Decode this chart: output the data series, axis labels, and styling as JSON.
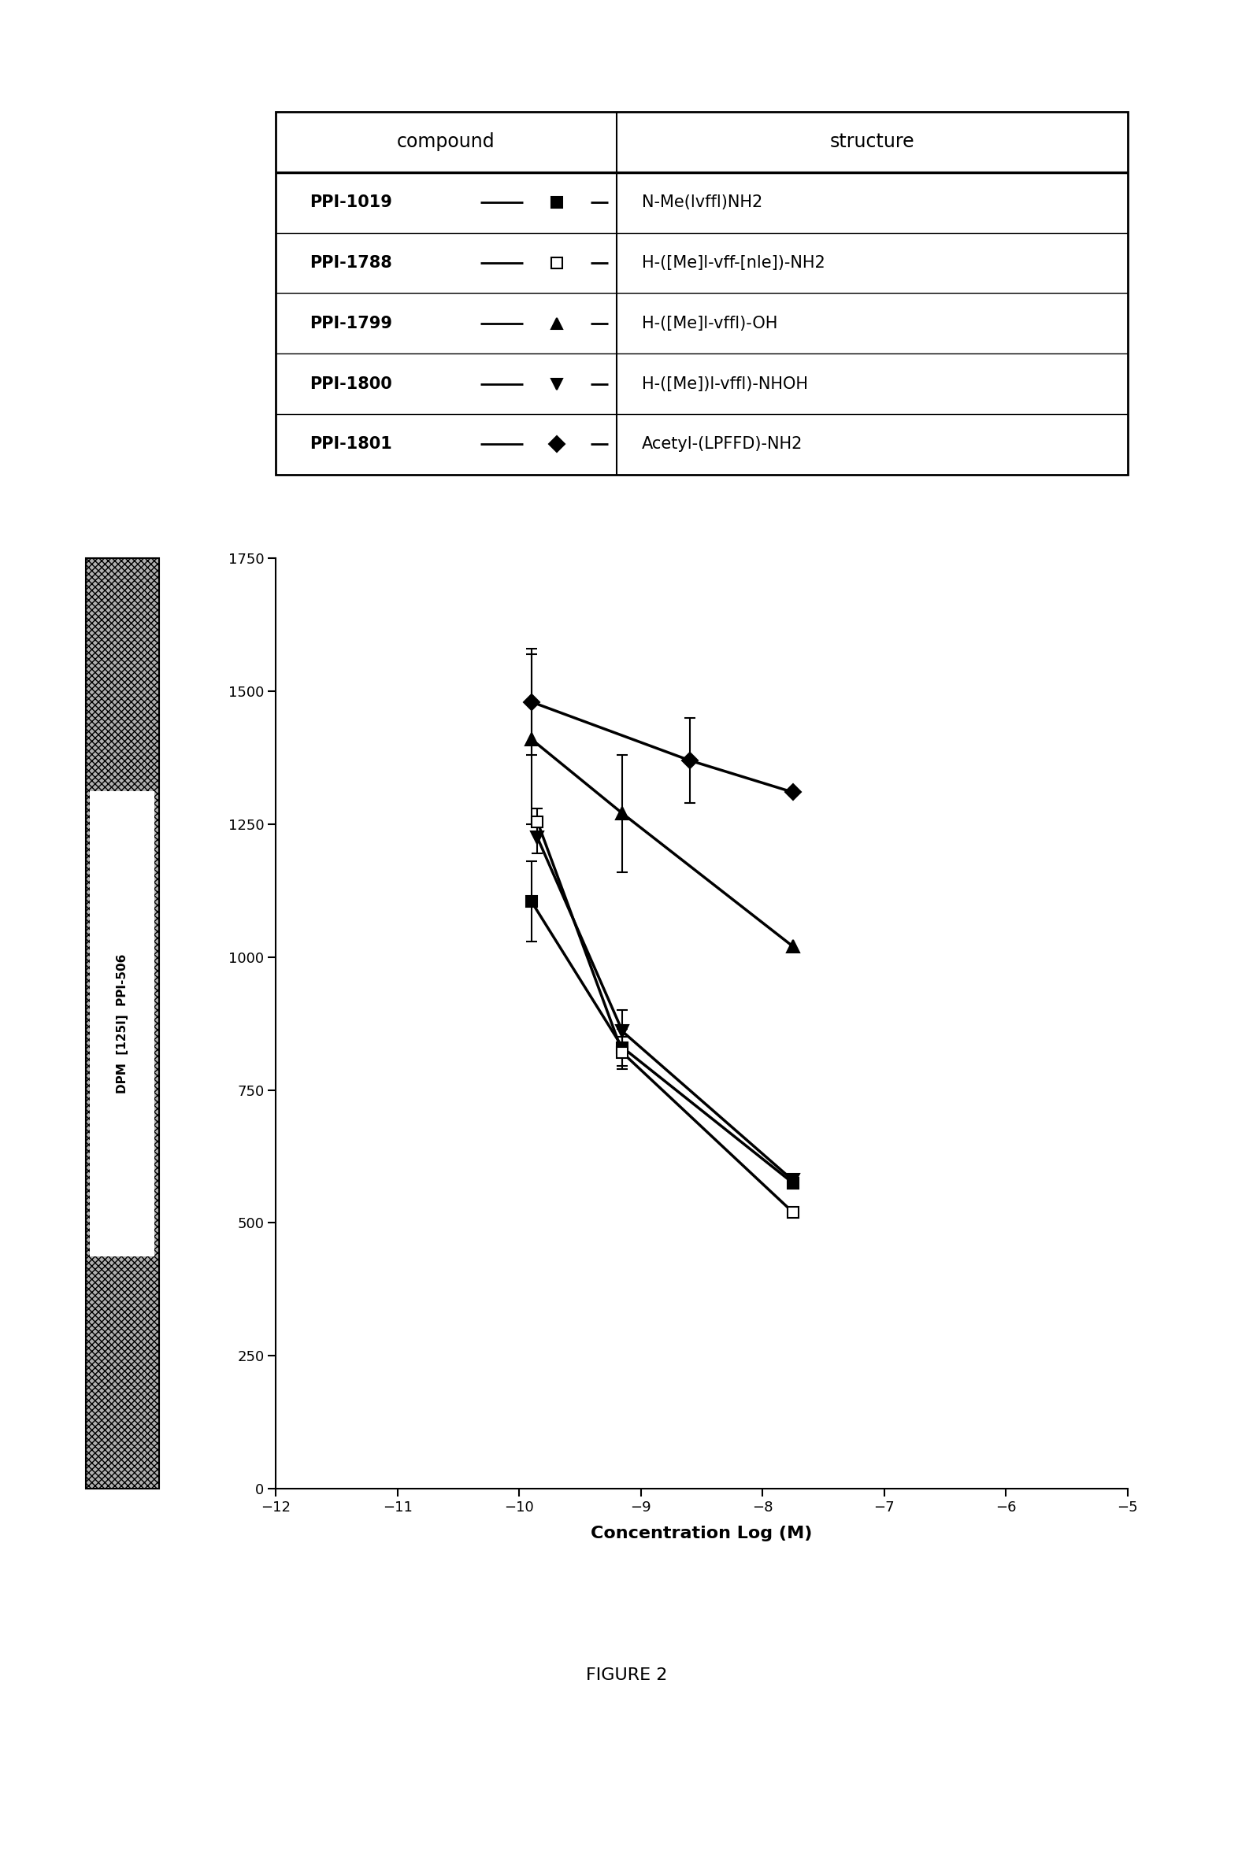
{
  "title": "FIGURE 2",
  "xlabel": "Concentration Log (M)",
  "xlim": [
    -12,
    -5
  ],
  "ylim": [
    0,
    1750
  ],
  "xticks": [
    -12,
    -11,
    -10,
    -9,
    -8,
    -7,
    -6,
    -5
  ],
  "yticks": [
    0,
    250,
    500,
    750,
    1000,
    1250,
    1500,
    1750
  ],
  "series": [
    {
      "label": "PPI-1019",
      "compound": "PPI-1019",
      "structure": "N-Me(lvffl)NH2",
      "x": [
        -9.9,
        -9.15,
        -7.75
      ],
      "y": [
        1105,
        830,
        575
      ],
      "yerr": [
        75,
        35,
        0
      ],
      "has_err": [
        true,
        true,
        false
      ],
      "marker": "s",
      "markersize": 10,
      "filled": true,
      "linewidth": 2.5
    },
    {
      "label": "PPI-1788",
      "compound": "PPI-1788",
      "structure": "H-([Me]l-vff-[nle])-NH2",
      "x": [
        -9.85,
        -9.15,
        -7.75
      ],
      "y": [
        1255,
        820,
        520
      ],
      "yerr": [
        25,
        30,
        0
      ],
      "has_err": [
        true,
        true,
        false
      ],
      "marker": "s",
      "markersize": 10,
      "filled": false,
      "linewidth": 2.5
    },
    {
      "label": "PPI-1799",
      "compound": "PPI-1799",
      "structure": "H-([Me]l-vffl)-OH",
      "x": [
        -9.9,
        -9.15,
        -7.75
      ],
      "y": [
        1410,
        1270,
        1020
      ],
      "yerr": [
        160,
        110,
        0
      ],
      "has_err": [
        true,
        true,
        false
      ],
      "marker": "^",
      "markersize": 12,
      "filled": true,
      "linewidth": 2.5
    },
    {
      "label": "PPI-1800",
      "compound": "PPI-1800",
      "structure": "H-([Me])l-vffl)-NHOH",
      "x": [
        -9.85,
        -9.15,
        -7.75
      ],
      "y": [
        1225,
        860,
        580
      ],
      "yerr": [
        30,
        40,
        0
      ],
      "has_err": [
        true,
        true,
        false
      ],
      "marker": "v",
      "markersize": 12,
      "filled": true,
      "linewidth": 2.5
    },
    {
      "label": "PPI-1801",
      "compound": "PPI-1801",
      "structure": "Acetyl-(LPFFD)-NH2",
      "x": [
        -9.9,
        -8.6,
        -7.75
      ],
      "y": [
        1480,
        1370,
        1310
      ],
      "yerr": [
        100,
        80,
        0
      ],
      "has_err": [
        true,
        true,
        false
      ],
      "marker": "D",
      "markersize": 10,
      "filled": true,
      "linewidth": 2.5
    }
  ],
  "legend_compounds": [
    "PPI-1019",
    "PPI-1788",
    "PPI-1799",
    "PPI-1800",
    "PPI-1801"
  ],
  "legend_structures": [
    "N-Me(lvffl)NH2",
    "H-([Me]l-vff-[nle])-NH2",
    "H-([Me]l-vffl)-OH",
    "H-([Me])l-vffl)-NHOH",
    "Acetyl-(LPFFD)-NH2"
  ],
  "legend_markers": [
    "s",
    "s",
    "^",
    "v",
    "D"
  ],
  "legend_filled": [
    true,
    false,
    true,
    true,
    true
  ],
  "ylabel_texts": [
    "DPM",
    "[125I]",
    "PPI-506"
  ]
}
